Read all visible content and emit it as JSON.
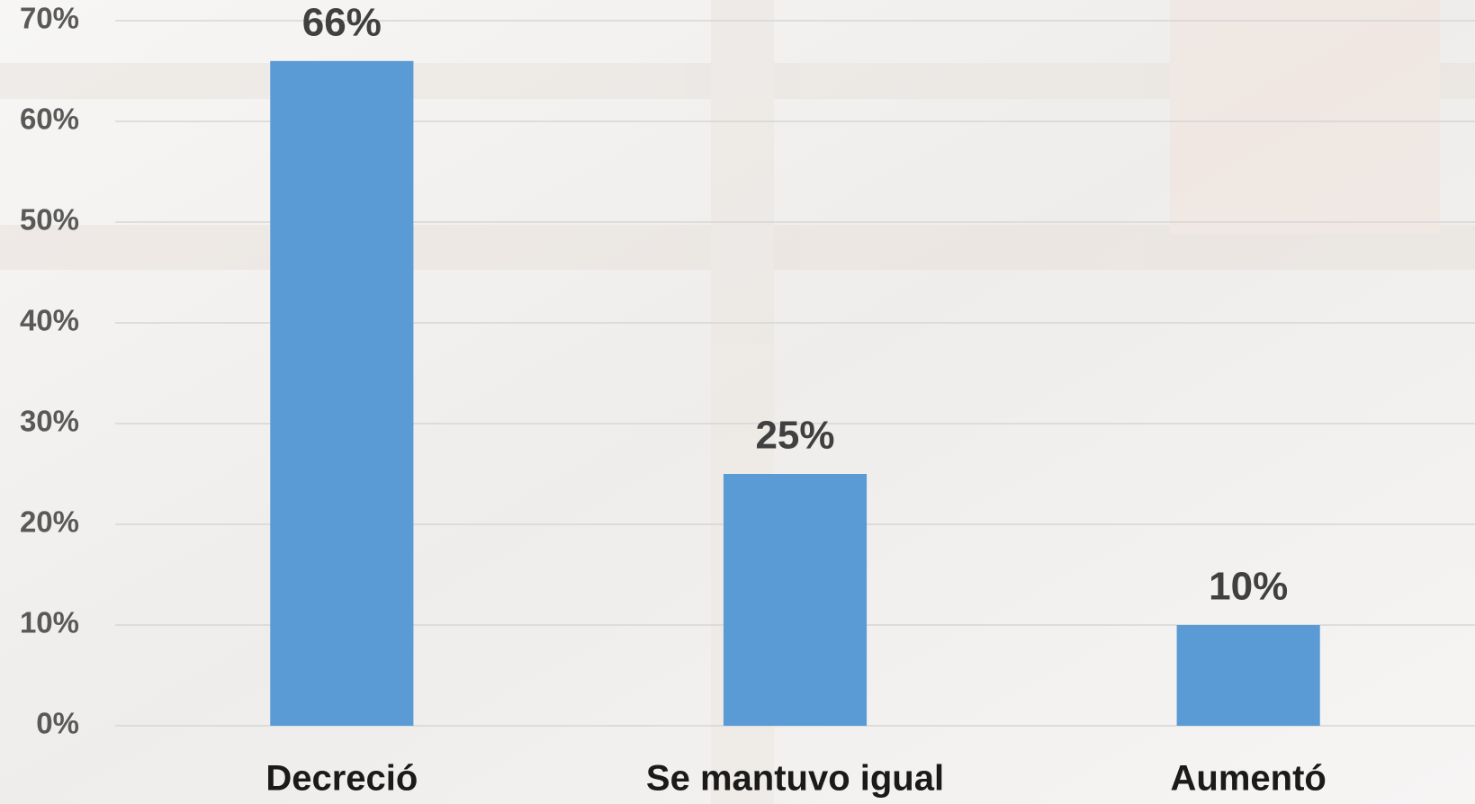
{
  "chart_data": {
    "type": "bar",
    "categories": [
      "Decreció",
      "Se mantuvo igual",
      "Aumentó"
    ],
    "values": [
      66,
      25,
      10
    ],
    "value_labels": [
      "66%",
      "25%",
      "10%"
    ],
    "color": "#5b9bd5",
    "ylim": [
      0,
      70
    ],
    "yticks": [
      {
        "value": 0,
        "label": "0%"
      },
      {
        "value": 10,
        "label": "10%"
      },
      {
        "value": 20,
        "label": "20%"
      },
      {
        "value": 30,
        "label": "30%"
      },
      {
        "value": 40,
        "label": "40%"
      },
      {
        "value": 50,
        "label": "50%"
      },
      {
        "value": 60,
        "label": "60%"
      },
      {
        "value": 70,
        "label": "70%"
      }
    ],
    "grid": true
  }
}
